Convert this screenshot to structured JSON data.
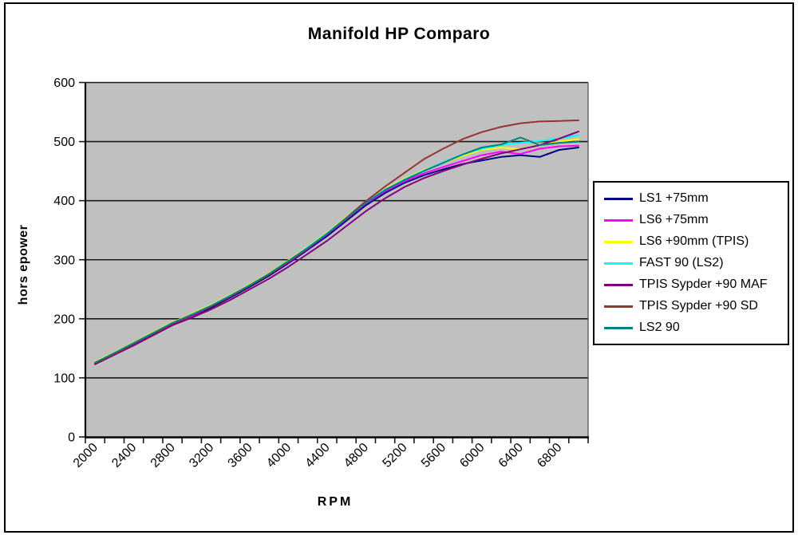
{
  "chart_data": {
    "type": "line",
    "title": "Manifold HP Comparo",
    "xlabel": "RPM",
    "ylabel": "hors epower",
    "plot_bg": "#c0c0c0",
    "grid": true,
    "legend_position": "right",
    "x_axis_range": [
      1900,
      7100
    ],
    "x_tick_step": 200,
    "ylim": [
      0,
      600
    ],
    "y_ticks": [
      0,
      100,
      200,
      300,
      400,
      500,
      600
    ],
    "x_labels": [
      2000,
      2400,
      2800,
      3200,
      3600,
      4000,
      4400,
      4800,
      5200,
      5600,
      6000,
      6400,
      6800
    ],
    "x": [
      2000,
      2200,
      2400,
      2600,
      2800,
      3000,
      3200,
      3400,
      3600,
      3800,
      4000,
      4200,
      4400,
      4600,
      4800,
      5000,
      5200,
      5400,
      5600,
      5800,
      6000,
      6200,
      6400,
      6600,
      6800,
      7000
    ],
    "series": [
      {
        "name": "LS1 +75mm",
        "color": "#000080",
        "values": [
          124,
          140,
          157,
          174,
          191,
          204,
          219,
          236,
          254,
          273,
          294,
          317,
          340,
          366,
          392,
          413,
          430,
          443,
          453,
          462,
          468,
          474,
          477,
          474,
          486,
          490
        ]
      },
      {
        "name": "LS6 +75mm",
        "color": "#ff00ff",
        "values": [
          125,
          141,
          158,
          175,
          192,
          205,
          221,
          238,
          256,
          275,
          296,
          319,
          343,
          369,
          395,
          416,
          433,
          446,
          457,
          467,
          477,
          483,
          479,
          488,
          492,
          493
        ]
      },
      {
        "name": "LS6 +90mm (TPIS)",
        "color": "#ffff00",
        "values": [
          127,
          143,
          160,
          177,
          194,
          208,
          223,
          240,
          258,
          277,
          299,
          322,
          346,
          372,
          398,
          420,
          437,
          452,
          464,
          476,
          486,
          490,
          487,
          495,
          500,
          504
        ]
      },
      {
        "name": "FAST 90 (LS2)",
        "color": "#00ffff",
        "values": [
          126,
          142,
          159,
          176,
          193,
          207,
          222,
          239,
          257,
          276,
          298,
          321,
          345,
          371,
          397,
          419,
          436,
          451,
          465,
          478,
          488,
          494,
          498,
          501,
          505,
          511
        ]
      },
      {
        "name": "TPIS Sypder +90 MAF",
        "color": "#800080",
        "values": [
          123,
          139,
          155,
          172,
          189,
          202,
          216,
          232,
          250,
          268,
          288,
          310,
          332,
          357,
          382,
          404,
          423,
          438,
          450,
          461,
          471,
          480,
          487,
          494,
          505,
          517
        ]
      },
      {
        "name": "TPIS Sypder +90 SD",
        "color": "#993333",
        "values": [
          125,
          141,
          158,
          175,
          192,
          206,
          221,
          238,
          256,
          275,
          297,
          320,
          344,
          371,
          399,
          424,
          447,
          470,
          488,
          504,
          516,
          525,
          531,
          534,
          535,
          536
        ]
      },
      {
        "name": "LS2 90",
        "color": "#008080",
        "values": [
          126,
          142,
          159,
          176,
          193,
          207,
          222,
          239,
          257,
          276,
          298,
          320,
          344,
          370,
          396,
          418,
          435,
          450,
          464,
          478,
          490,
          495,
          507,
          494,
          498,
          500
        ]
      }
    ]
  }
}
